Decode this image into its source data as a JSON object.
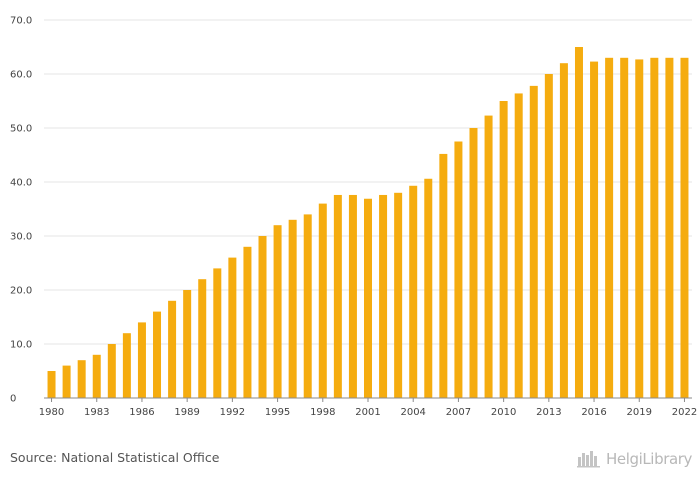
{
  "chart_data": {
    "type": "bar",
    "categories": [
      "1980",
      "1981",
      "1982",
      "1983",
      "1984",
      "1985",
      "1986",
      "1987",
      "1988",
      "1989",
      "1990",
      "1991",
      "1992",
      "1993",
      "1994",
      "1995",
      "1996",
      "1997",
      "1998",
      "1999",
      "2000",
      "2001",
      "2002",
      "2003",
      "2004",
      "2005",
      "2006",
      "2007",
      "2008",
      "2009",
      "2010",
      "2011",
      "2012",
      "2013",
      "2014",
      "2015",
      "2016",
      "2017",
      "2018",
      "2019",
      "2020",
      "2021",
      "2022"
    ],
    "tick_labels_x": [
      "1980",
      "1983",
      "1986",
      "1989",
      "1992",
      "1995",
      "1998",
      "2001",
      "2004",
      "2007",
      "2010",
      "2013",
      "2016",
      "2019",
      "2022"
    ],
    "series": [
      {
        "values": [
          5.0,
          6.0,
          7.0,
          8.0,
          10.0,
          12.0,
          14.0,
          16.0,
          18.0,
          20.0,
          22.0,
          24.0,
          26.0,
          28.0,
          30.0,
          32.0,
          33.0,
          34.0,
          36.0,
          37.6,
          37.6,
          36.9,
          37.6,
          38.0,
          39.3,
          40.6,
          45.2,
          47.5,
          50.0,
          52.3,
          55.0,
          56.4,
          57.8,
          60.0,
          62.0,
          65.0,
          62.3,
          63.0,
          63.0,
          62.7,
          63.0,
          63.0,
          63.0
        ]
      }
    ],
    "yticks": [
      "0",
      "10.0",
      "20.0",
      "30.0",
      "40.0",
      "50.0",
      "60.0",
      "70.0"
    ],
    "ylim": [
      0,
      70
    ],
    "grid": true,
    "title": "",
    "xlabel": "",
    "ylabel": "",
    "colors": {
      "bar": "#f5ac0f",
      "grid": "#e6e6e6",
      "axis": "#8a8a8a"
    }
  },
  "footer": {
    "source": "Source: National Statistical Office",
    "brand": "HelgiLibrary",
    "brand_logo": "helgi-library-logo"
  }
}
